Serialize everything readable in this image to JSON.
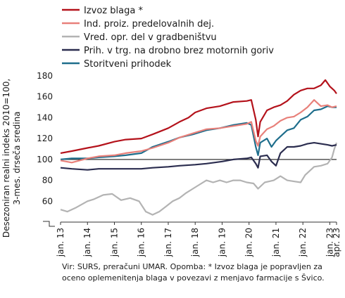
{
  "chart_data": {
    "type": "line",
    "title": "",
    "ylabel_line1": "Desezoniran realni indeks 2010=100,",
    "ylabel_line2": "3-mes. drseča sredina",
    "xlabel": "",
    "ylim": [
      40,
      180
    ],
    "y_ticks": [
      60,
      80,
      100,
      120,
      140,
      160,
      180
    ],
    "reference_line": 100,
    "x_range": [
      "2013-01",
      "2023-04"
    ],
    "x_ticks": [
      "jan. 13",
      "jan. 14",
      "jan. 15",
      "jan. 16",
      "jan. 17",
      "jan. 18",
      "jan. 19",
      "jan. 20",
      "jan. 21",
      "jan. 22",
      "jan. 23",
      "apr. 23"
    ],
    "grid": false,
    "legend_position": "top-left",
    "series": [
      {
        "name": "Izvoz blaga *",
        "color": "#b4121b",
        "points": [
          [
            "2013-01",
            106
          ],
          [
            "2013-06",
            108
          ],
          [
            "2014-01",
            111
          ],
          [
            "2014-06",
            113
          ],
          [
            "2015-01",
            117
          ],
          [
            "2015-06",
            119
          ],
          [
            "2016-01",
            120
          ],
          [
            "2016-06",
            124
          ],
          [
            "2017-01",
            130
          ],
          [
            "2017-06",
            136
          ],
          [
            "2017-10",
            140
          ],
          [
            "2018-01",
            145
          ],
          [
            "2018-06",
            149
          ],
          [
            "2018-12",
            151
          ],
          [
            "2019-06",
            155
          ],
          [
            "2019-12",
            156
          ],
          [
            "2020-02",
            157
          ],
          [
            "2020-04",
            138
          ],
          [
            "2020-05",
            122
          ],
          [
            "2020-06",
            136
          ],
          [
            "2020-09",
            147
          ],
          [
            "2020-12",
            150
          ],
          [
            "2021-03",
            152
          ],
          [
            "2021-06",
            156
          ],
          [
            "2021-09",
            162
          ],
          [
            "2021-12",
            166
          ],
          [
            "2022-03",
            168
          ],
          [
            "2022-06",
            168
          ],
          [
            "2022-09",
            171
          ],
          [
            "2022-11",
            176
          ],
          [
            "2023-01",
            170
          ],
          [
            "2023-03",
            166
          ],
          [
            "2023-04",
            163
          ]
        ]
      },
      {
        "name": "Ind. proiz. predelovalnih dej.",
        "color": "#e8807a",
        "points": [
          [
            "2013-01",
            99
          ],
          [
            "2013-06",
            97
          ],
          [
            "2014-01",
            101
          ],
          [
            "2014-06",
            103
          ],
          [
            "2015-01",
            104
          ],
          [
            "2015-06",
            106
          ],
          [
            "2016-01",
            108
          ],
          [
            "2016-06",
            111
          ],
          [
            "2017-01",
            116
          ],
          [
            "2017-06",
            121
          ],
          [
            "2017-12",
            125
          ],
          [
            "2018-06",
            129
          ],
          [
            "2018-12",
            130
          ],
          [
            "2019-06",
            132
          ],
          [
            "2019-12",
            134
          ],
          [
            "2020-02",
            136
          ],
          [
            "2020-04",
            118
          ],
          [
            "2020-05",
            113
          ],
          [
            "2020-06",
            122
          ],
          [
            "2020-09",
            129
          ],
          [
            "2020-12",
            132
          ],
          [
            "2021-03",
            137
          ],
          [
            "2021-06",
            140
          ],
          [
            "2021-09",
            141
          ],
          [
            "2021-12",
            145
          ],
          [
            "2022-03",
            150
          ],
          [
            "2022-06",
            157
          ],
          [
            "2022-09",
            151
          ],
          [
            "2022-12",
            152
          ],
          [
            "2023-02",
            150
          ],
          [
            "2023-04",
            151
          ]
        ]
      },
      {
        "name": "Vred. opr. del v gradbeništvu",
        "color": "#b3b3b3",
        "points": [
          [
            "2013-01",
            52
          ],
          [
            "2013-04",
            50
          ],
          [
            "2013-08",
            54
          ],
          [
            "2014-01",
            60
          ],
          [
            "2014-04",
            62
          ],
          [
            "2014-08",
            66
          ],
          [
            "2014-12",
            67
          ],
          [
            "2015-04",
            61
          ],
          [
            "2015-08",
            63
          ],
          [
            "2015-12",
            60
          ],
          [
            "2016-03",
            50
          ],
          [
            "2016-06",
            47
          ],
          [
            "2016-09",
            50
          ],
          [
            "2016-12",
            55
          ],
          [
            "2017-03",
            60
          ],
          [
            "2017-06",
            63
          ],
          [
            "2017-09",
            68
          ],
          [
            "2017-12",
            72
          ],
          [
            "2018-03",
            76
          ],
          [
            "2018-06",
            80
          ],
          [
            "2018-09",
            78
          ],
          [
            "2018-12",
            80
          ],
          [
            "2019-03",
            78
          ],
          [
            "2019-06",
            80
          ],
          [
            "2019-09",
            80
          ],
          [
            "2019-12",
            78
          ],
          [
            "2020-03",
            77
          ],
          [
            "2020-05",
            72
          ],
          [
            "2020-08",
            78
          ],
          [
            "2020-12",
            80
          ],
          [
            "2021-03",
            84
          ],
          [
            "2021-06",
            80
          ],
          [
            "2021-09",
            79
          ],
          [
            "2021-12",
            78
          ],
          [
            "2022-02",
            85
          ],
          [
            "2022-06",
            93
          ],
          [
            "2022-09",
            94
          ],
          [
            "2022-12",
            96
          ],
          [
            "2023-02",
            102
          ],
          [
            "2023-03",
            110
          ],
          [
            "2023-04",
            116
          ]
        ]
      },
      {
        "name": "Prih. v trg. na drobno brez motornih goriv",
        "color": "#2b2d4f",
        "points": [
          [
            "2013-01",
            92
          ],
          [
            "2013-06",
            91
          ],
          [
            "2014-01",
            90
          ],
          [
            "2014-06",
            91
          ],
          [
            "2015-01",
            91
          ],
          [
            "2015-06",
            91
          ],
          [
            "2016-01",
            91
          ],
          [
            "2016-06",
            92
          ],
          [
            "2017-01",
            93
          ],
          [
            "2017-06",
            94
          ],
          [
            "2018-01",
            95
          ],
          [
            "2018-06",
            96
          ],
          [
            "2019-01",
            98
          ],
          [
            "2019-06",
            100
          ],
          [
            "2019-12",
            101
          ],
          [
            "2020-02",
            102
          ],
          [
            "2020-04",
            96
          ],
          [
            "2020-05",
            92
          ],
          [
            "2020-06",
            103
          ],
          [
            "2020-09",
            104
          ],
          [
            "2020-11",
            98
          ],
          [
            "2021-01",
            94
          ],
          [
            "2021-03",
            106
          ],
          [
            "2021-06",
            112
          ],
          [
            "2021-09",
            112
          ],
          [
            "2021-12",
            113
          ],
          [
            "2022-03",
            115
          ],
          [
            "2022-06",
            116
          ],
          [
            "2022-09",
            115
          ],
          [
            "2022-12",
            114
          ],
          [
            "2023-02",
            113
          ],
          [
            "2023-04",
            114
          ]
        ]
      },
      {
        "name": "Storitveni prihodek",
        "color": "#1f6e8c",
        "points": [
          [
            "2013-01",
            100
          ],
          [
            "2013-06",
            101
          ],
          [
            "2014-01",
            101
          ],
          [
            "2014-06",
            102
          ],
          [
            "2015-01",
            103
          ],
          [
            "2015-06",
            104
          ],
          [
            "2016-01",
            106
          ],
          [
            "2016-06",
            112
          ],
          [
            "2017-01",
            117
          ],
          [
            "2017-06",
            121
          ],
          [
            "2017-12",
            124
          ],
          [
            "2018-06",
            128
          ],
          [
            "2018-12",
            130
          ],
          [
            "2019-06",
            133
          ],
          [
            "2019-12",
            135
          ],
          [
            "2020-02",
            133
          ],
          [
            "2020-04",
            112
          ],
          [
            "2020-05",
            104
          ],
          [
            "2020-06",
            116
          ],
          [
            "2020-09",
            120
          ],
          [
            "2020-11",
            112
          ],
          [
            "2021-01",
            118
          ],
          [
            "2021-04",
            124
          ],
          [
            "2021-06",
            128
          ],
          [
            "2021-09",
            130
          ],
          [
            "2021-12",
            138
          ],
          [
            "2022-03",
            141
          ],
          [
            "2022-06",
            147
          ],
          [
            "2022-09",
            148
          ],
          [
            "2022-12",
            151
          ],
          [
            "2023-02",
            150
          ],
          [
            "2023-04",
            150
          ]
        ]
      }
    ]
  },
  "footnote": {
    "line1": "Vir: SURS, preračuni UMAR. Opomba: * Izvoz blaga je popravljen za",
    "line2": "oceno oplemenitenja blaga v povezavi z menjavo farmacije s Švico."
  }
}
